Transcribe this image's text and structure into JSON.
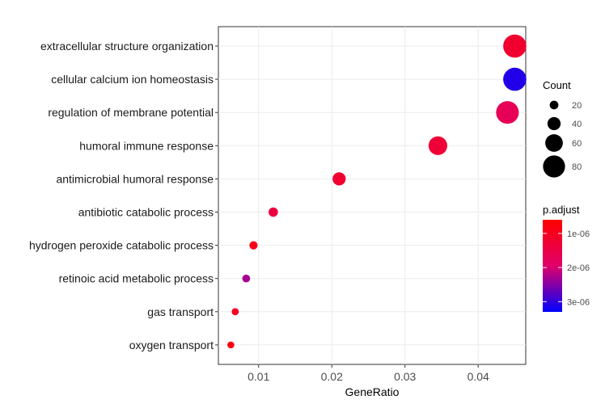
{
  "chart_data": {
    "type": "scatter",
    "xlabel": "GeneRatio",
    "ylabel": "",
    "xlim": [
      0.0045,
      0.0465
    ],
    "x_ticks": [
      {
        "value": 0.01,
        "label": "0.01"
      },
      {
        "value": 0.02,
        "label": "0.02"
      },
      {
        "value": 0.03,
        "label": "0.03"
      },
      {
        "value": 0.04,
        "label": "0.04"
      }
    ],
    "grid": true,
    "categories": [
      "extracellular structure organization",
      "cellular calcium ion homeostasis",
      "regulation of membrane potential",
      "humoral immune response",
      "antimicrobial humoral response",
      "antibiotic catabolic process",
      "hydrogen peroxide catabolic process",
      "retinoic acid metabolic process",
      "gas transport",
      "oxygen transport"
    ],
    "points": [
      {
        "term": "extracellular structure organization",
        "gene_ratio": 0.045,
        "count": 85,
        "p_adjust": 1.2e-06
      },
      {
        "term": "cellular calcium ion homeostasis",
        "gene_ratio": 0.045,
        "count": 85,
        "p_adjust": 3.1e-06
      },
      {
        "term": "regulation of membrane potential",
        "gene_ratio": 0.044,
        "count": 83,
        "p_adjust": 1.7e-06
      },
      {
        "term": "humoral immune response",
        "gene_ratio": 0.0345,
        "count": 65,
        "p_adjust": 1.3e-06
      },
      {
        "term": "antimicrobial humoral response",
        "gene_ratio": 0.021,
        "count": 40,
        "p_adjust": 1.2e-06
      },
      {
        "term": "antibiotic catabolic process",
        "gene_ratio": 0.012,
        "count": 23,
        "p_adjust": 1.4e-06
      },
      {
        "term": "hydrogen peroxide catabolic process",
        "gene_ratio": 0.0093,
        "count": 18,
        "p_adjust": 9e-07
      },
      {
        "term": "retinoic acid metabolic process",
        "gene_ratio": 0.0083,
        "count": 16,
        "p_adjust": 2.3e-06
      },
      {
        "term": "gas transport",
        "gene_ratio": 0.0068,
        "count": 13,
        "p_adjust": 1.1e-06
      },
      {
        "term": "oxygen transport",
        "gene_ratio": 0.0062,
        "count": 12,
        "p_adjust": 8e-07
      }
    ],
    "size_legend": {
      "title": "Count",
      "entries": [
        {
          "count": 20,
          "label": "20"
        },
        {
          "count": 40,
          "label": "40"
        },
        {
          "count": 60,
          "label": "60"
        },
        {
          "count": 80,
          "label": "80"
        }
      ]
    },
    "color_legend": {
      "title": "p.adjust",
      "low_color": "#ff0000",
      "high_color": "#0000ff",
      "range": [
        6e-07,
        3.3e-06
      ],
      "ticks": [
        {
          "value": 1e-06,
          "label": "1e-06"
        },
        {
          "value": 2e-06,
          "label": "2e-06"
        },
        {
          "value": 3e-06,
          "label": "3e-06"
        }
      ]
    },
    "legend_position": "right"
  }
}
